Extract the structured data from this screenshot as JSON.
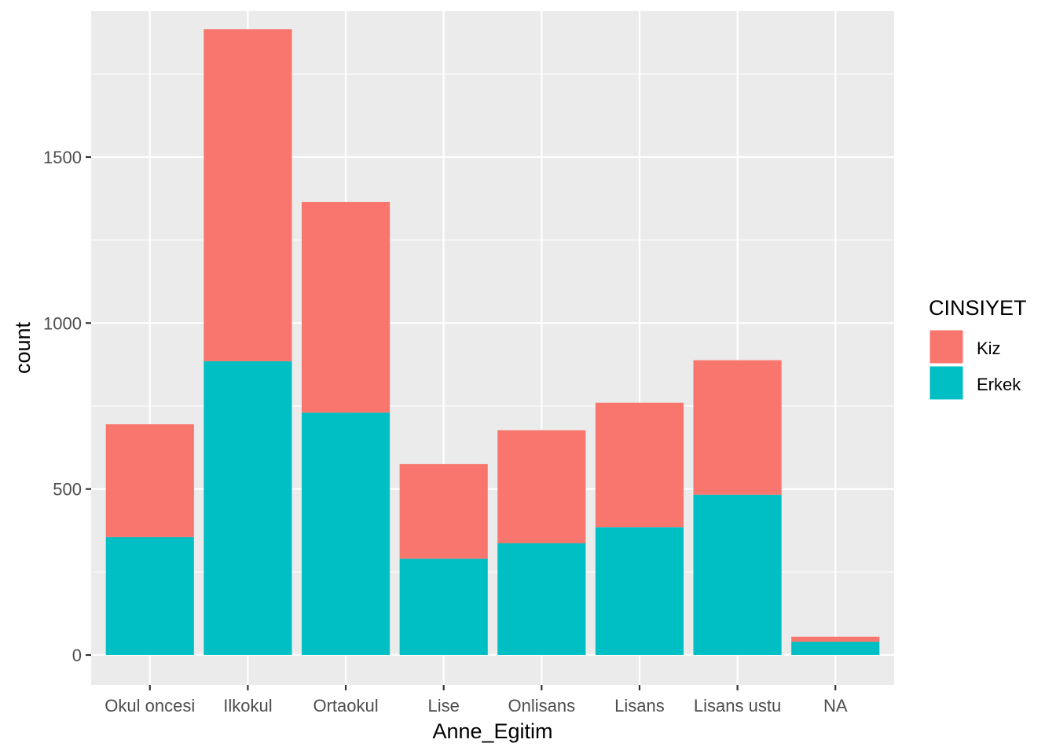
{
  "chart_data": {
    "type": "bar",
    "stacked": true,
    "categories": [
      "Okul oncesi",
      "Ilkokul",
      "Ortaokul",
      "Lise",
      "Onlisans",
      "Lisans",
      "Lisans ustu",
      "NA"
    ],
    "series": [
      {
        "name": "Kiz",
        "color": "#F8766D",
        "values": [
          340,
          1000,
          635,
          285,
          340,
          375,
          405,
          15
        ]
      },
      {
        "name": "Erkek",
        "color": "#00BFC4",
        "values": [
          355,
          885,
          730,
          290,
          337,
          385,
          483,
          40
        ]
      }
    ],
    "xlabel": "Anne_Egitim",
    "ylabel": "count",
    "ylim": [
      -90,
      1940
    ],
    "yticks": [
      0,
      500,
      1000,
      1500
    ],
    "ytick_labels": [
      "0",
      "500",
      "1000",
      "1500"
    ],
    "grid": true,
    "panel_background": "#EBEBEB",
    "legend": {
      "title": "CINSIYET",
      "position": "right",
      "entries": [
        "Kiz",
        "Erkek"
      ]
    }
  }
}
